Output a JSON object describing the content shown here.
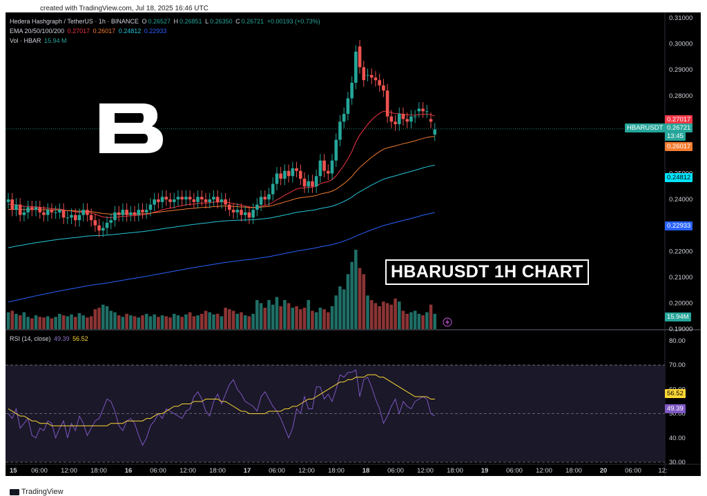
{
  "header": {
    "credit": "created with TradingView.com, Jul 18, 2025 16:46 UTC"
  },
  "footer": {
    "brand": "TradingView"
  },
  "legend": {
    "symbol": "Hedera Hashgraph / TetherUS · 1h · BINANCE",
    "o_label": "O",
    "o_value": "0.26527",
    "h_label": "H",
    "h_value": "0.26851",
    "l_label": "L",
    "l_value": "0.26350",
    "c_label": "C",
    "c_value": "0.26721",
    "change": "+0.00193 (+0.73%)",
    "ema_label": "EMA 20/50/100/200",
    "ema_values": [
      "0.27017",
      "0.26017",
      "0.24812",
      "0.22933"
    ],
    "vol_label": "Vol · HBAR",
    "vol_value": "15.94 M",
    "rsi_label": "RSI (14, close)",
    "rsi_value": "49.39",
    "rsi_ma_value": "56.52"
  },
  "annotation": {
    "title": "HBARUSDT 1H CHART"
  },
  "price_tags": {
    "symbol": "HBARUSDT",
    "last": "0.26721",
    "countdown": "13:45",
    "ema20": "0.27017",
    "ema50": "0.26017",
    "ema100": "0.24812",
    "ema200": "0.22933",
    "volume": "15.94M",
    "rsi": "49.39",
    "rsi_ma": "56.52"
  },
  "colors": {
    "up": "#26a69a",
    "down": "#ef5350",
    "ema20": "#f23645",
    "ema50": "#f57c30",
    "ema100": "#26c6da",
    "ema200": "#2962ff",
    "rsi": "#7e57c2",
    "rsi_ma": "#fdd835"
  },
  "chart_data": {
    "type": "candlestick",
    "price_axis": {
      "min": 0.19,
      "max": 0.31,
      "ticks": [
        "0.31000",
        "0.30000",
        "0.29000",
        "0.28000",
        "0.27000",
        "0.26000",
        "0.25000",
        "0.24000",
        "0.23000",
        "0.22000",
        "0.21000",
        "0.20000",
        "0.19000"
      ]
    },
    "rsi_axis": {
      "min": 30,
      "max": 80,
      "ticks": [
        "80.00",
        "70.00",
        "60.00",
        "50.00",
        "40.00",
        "30.00"
      ],
      "band": [
        30,
        70
      ],
      "midline": 50
    },
    "time_labels": [
      "15",
      "06:00",
      "12:00",
      "18:00",
      "16",
      "06:00",
      "12:00",
      "18:00",
      "17",
      "06:00",
      "12:00",
      "18:00",
      "18",
      "06:00",
      "12:00",
      "18:00",
      "19",
      "06:00",
      "12:00",
      "18:00",
      "20",
      "06:00",
      "12:"
    ],
    "bold_time_labels": [
      "15",
      "16",
      "17",
      "18",
      "19",
      "20"
    ],
    "last_price": 0.26721,
    "close": [
      0.24,
      0.236,
      0.238,
      0.234,
      0.235,
      0.237,
      0.236,
      0.237,
      0.235,
      0.234,
      0.236,
      0.235,
      0.235,
      0.236,
      0.233,
      0.233,
      0.234,
      0.232,
      0.234,
      0.236,
      0.234,
      0.232,
      0.23,
      0.228,
      0.229,
      0.231,
      0.232,
      0.235,
      0.234,
      0.236,
      0.234,
      0.235,
      0.234,
      0.236,
      0.235,
      0.236,
      0.238,
      0.24,
      0.239,
      0.241,
      0.24,
      0.239,
      0.24,
      0.241,
      0.24,
      0.241,
      0.24,
      0.239,
      0.241,
      0.24,
      0.239,
      0.24,
      0.241,
      0.239,
      0.24,
      0.238,
      0.236,
      0.235,
      0.236,
      0.234,
      0.235,
      0.233,
      0.236,
      0.238,
      0.241,
      0.24,
      0.242,
      0.246,
      0.25,
      0.248,
      0.251,
      0.249,
      0.252,
      0.251,
      0.248,
      0.245,
      0.247,
      0.245,
      0.249,
      0.255,
      0.251,
      0.25,
      0.255,
      0.263,
      0.27,
      0.273,
      0.279,
      0.285,
      0.297,
      0.291,
      0.286,
      0.288,
      0.287,
      0.286,
      0.284,
      0.282,
      0.272,
      0.27,
      0.269,
      0.273,
      0.271,
      0.27,
      0.272,
      0.272,
      0.275,
      0.274,
      0.274,
      0.27,
      0.267
    ],
    "open": [
      0.239,
      0.24,
      0.236,
      0.238,
      0.234,
      0.235,
      0.237,
      0.236,
      0.237,
      0.235,
      0.234,
      0.236,
      0.235,
      0.235,
      0.236,
      0.233,
      0.233,
      0.234,
      0.232,
      0.234,
      0.236,
      0.234,
      0.232,
      0.23,
      0.228,
      0.229,
      0.231,
      0.232,
      0.235,
      0.234,
      0.236,
      0.234,
      0.235,
      0.234,
      0.236,
      0.235,
      0.236,
      0.238,
      0.24,
      0.239,
      0.241,
      0.24,
      0.239,
      0.24,
      0.241,
      0.24,
      0.241,
      0.24,
      0.239,
      0.241,
      0.24,
      0.239,
      0.24,
      0.241,
      0.239,
      0.24,
      0.238,
      0.236,
      0.235,
      0.236,
      0.234,
      0.235,
      0.233,
      0.236,
      0.238,
      0.241,
      0.24,
      0.242,
      0.246,
      0.25,
      0.248,
      0.251,
      0.249,
      0.252,
      0.251,
      0.248,
      0.245,
      0.247,
      0.245,
      0.249,
      0.255,
      0.251,
      0.25,
      0.255,
      0.263,
      0.27,
      0.273,
      0.279,
      0.285,
      0.299,
      0.291,
      0.288,
      0.288,
      0.287,
      0.286,
      0.284,
      0.282,
      0.272,
      0.27,
      0.269,
      0.273,
      0.271,
      0.27,
      0.272,
      0.274,
      0.275,
      0.274,
      0.271,
      0.265
    ],
    "volume": [
      0.55,
      0.6,
      0.5,
      0.45,
      0.55,
      0.4,
      0.35,
      0.45,
      0.4,
      0.38,
      0.42,
      0.35,
      0.4,
      0.5,
      0.45,
      0.42,
      0.48,
      0.4,
      0.52,
      0.45,
      0.38,
      0.42,
      0.65,
      0.7,
      0.8,
      0.75,
      0.6,
      0.55,
      0.45,
      0.4,
      0.5,
      0.45,
      0.42,
      0.38,
      0.45,
      0.5,
      0.42,
      0.48,
      0.4,
      0.45,
      0.42,
      0.38,
      0.5,
      0.45,
      0.4,
      0.48,
      0.55,
      0.42,
      0.45,
      0.5,
      0.6,
      0.55,
      0.48,
      0.5,
      0.42,
      0.7,
      0.65,
      0.6,
      0.5,
      0.55,
      0.45,
      0.42,
      0.5,
      0.95,
      0.85,
      0.7,
      0.95,
      0.8,
      1.05,
      0.75,
      0.95,
      0.85,
      0.7,
      0.75,
      0.65,
      0.7,
      0.95,
      0.6,
      0.55,
      0.7,
      0.65,
      0.55,
      0.75,
      1.1,
      1.4,
      1.3,
      1.8,
      2.2,
      2.6,
      2.0,
      1.8,
      1.1,
      0.95,
      0.85,
      0.75,
      0.9,
      0.85,
      0.8,
      1.0,
      0.9,
      0.6,
      0.5,
      0.55,
      0.6,
      0.5,
      0.45,
      0.55,
      0.8,
      0.5
    ],
    "rsi": [
      50,
      48,
      52,
      44,
      46,
      48,
      41,
      40,
      44,
      43,
      47,
      46,
      40,
      44,
      47,
      40,
      46,
      43,
      49,
      46,
      41,
      44,
      47,
      48,
      52,
      56,
      55,
      51,
      45,
      43,
      47,
      48,
      46,
      41,
      37,
      40,
      45,
      47,
      50,
      48,
      52,
      51,
      50,
      49,
      48,
      51,
      52,
      57,
      59,
      56,
      51,
      49,
      55,
      58,
      54,
      58,
      62,
      64,
      60,
      58,
      55,
      54,
      53,
      51,
      57,
      59,
      56,
      53,
      51,
      48,
      44,
      40,
      44,
      52,
      50,
      57,
      52,
      52,
      61,
      61,
      56,
      58,
      55,
      60,
      66,
      65,
      67,
      67,
      68,
      57,
      64,
      65,
      61,
      56,
      52,
      46,
      49,
      53,
      56,
      50,
      55,
      53,
      52,
      55,
      56,
      57,
      56,
      50,
      49
    ],
    "rsi_ma": [
      52,
      51,
      50,
      49,
      49,
      48,
      47,
      47,
      46,
      46,
      46,
      45,
      45,
      45,
      45,
      45,
      45,
      45,
      45,
      45,
      45,
      45,
      45,
      45,
      45,
      45,
      46,
      46,
      46,
      46,
      47,
      47,
      47,
      47,
      47,
      48,
      48,
      49,
      50,
      50,
      51,
      52,
      53,
      53,
      54,
      54,
      54,
      55,
      55,
      55,
      56,
      56,
      56,
      56,
      55,
      55,
      54,
      53,
      52,
      51,
      51,
      50,
      50,
      50,
      50,
      50,
      51,
      51,
      51,
      51,
      52,
      52,
      53,
      53,
      54,
      55,
      56,
      56,
      57,
      58,
      59,
      60,
      61,
      62,
      63,
      63,
      64,
      64,
      65,
      65,
      65,
      66,
      66,
      66,
      65,
      65,
      64,
      63,
      62,
      61,
      60,
      59,
      58,
      57,
      57,
      57,
      57,
      56,
      56
    ]
  }
}
